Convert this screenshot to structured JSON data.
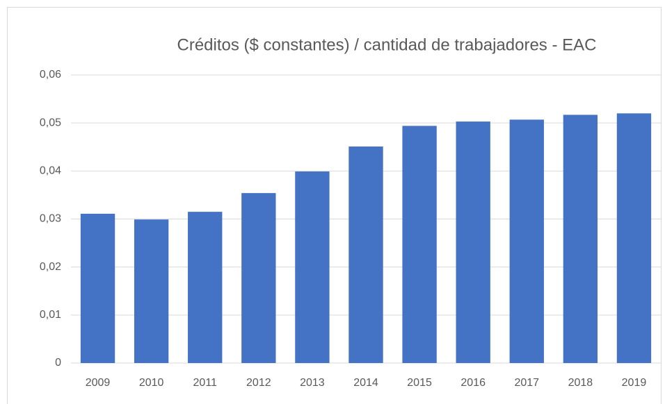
{
  "chart_data": {
    "type": "bar",
    "title": "Créditos ($ constantes) / cantidad de trabajadores - EAC",
    "categories": [
      "2009",
      "2010",
      "2011",
      "2012",
      "2013",
      "2014",
      "2015",
      "2016",
      "2017",
      "2018",
      "2019"
    ],
    "values": [
      0.0311,
      0.0299,
      0.0315,
      0.0354,
      0.0399,
      0.0451,
      0.0494,
      0.0503,
      0.0507,
      0.0517,
      0.052
    ],
    "color": "#4472c4",
    "ylim": [
      0,
      0.06
    ],
    "yticks": [
      0,
      {
        "value": 0.01,
        "label": "0,01"
      },
      {
        "value": 0.02,
        "label": "0,02"
      },
      {
        "value": 0.03,
        "label": "0,03"
      },
      {
        "value": 0.04,
        "label": "0,04"
      },
      {
        "value": 0.05,
        "label": "0,05"
      },
      {
        "value": 0.06,
        "label": "0,06"
      }
    ],
    "grid": true
  }
}
